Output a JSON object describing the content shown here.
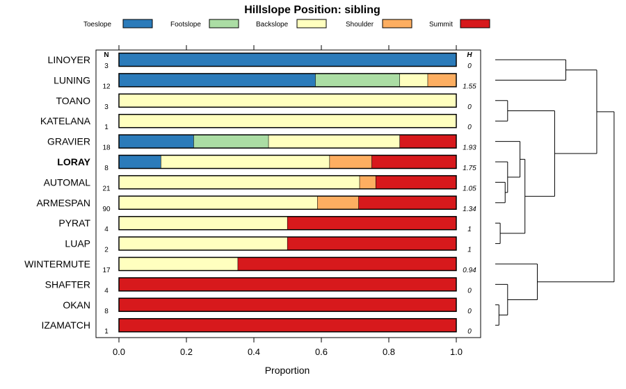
{
  "chart_data": {
    "type": "stacked-bar-horizontal",
    "title": "Hillslope Position: sibling",
    "xlabel": "Proportion",
    "xlim": [
      0,
      1
    ],
    "xticks": [
      "0.0",
      "0.2",
      "0.4",
      "0.6",
      "0.8",
      "1.0"
    ],
    "n_header": "N",
    "h_header": "H",
    "legend": [
      {
        "name": "Toeslope",
        "color": "#2b7bba"
      },
      {
        "name": "Footslope",
        "color": "#abdda4"
      },
      {
        "name": "Backslope",
        "color": "#ffffbf"
      },
      {
        "name": "Shoulder",
        "color": "#fdae61"
      },
      {
        "name": "Summit",
        "color": "#d7191c"
      }
    ],
    "rows": [
      {
        "label": "LINOYER",
        "bold": false,
        "n": "3",
        "h": "0",
        "values": [
          1.0,
          0,
          0,
          0,
          0
        ]
      },
      {
        "label": "LUNING",
        "bold": false,
        "n": "12",
        "h": "1.55",
        "values": [
          0.583,
          0.25,
          0.083,
          0.084,
          0
        ]
      },
      {
        "label": "TOANO",
        "bold": false,
        "n": "3",
        "h": "0",
        "values": [
          0,
          0,
          1.0,
          0,
          0
        ]
      },
      {
        "label": "KATELANA",
        "bold": false,
        "n": "1",
        "h": "0",
        "values": [
          0,
          0,
          1.0,
          0,
          0
        ]
      },
      {
        "label": "GRAVIER",
        "bold": false,
        "n": "18",
        "h": "1.93",
        "values": [
          0.222,
          0.222,
          0.389,
          0,
          0.167
        ]
      },
      {
        "label": "LORAY",
        "bold": true,
        "n": "8",
        "h": "1.75",
        "values": [
          0.125,
          0,
          0.5,
          0.125,
          0.25
        ]
      },
      {
        "label": "AUTOMAL",
        "bold": false,
        "n": "21",
        "h": "1.05",
        "values": [
          0,
          0,
          0.714,
          0.048,
          0.238
        ]
      },
      {
        "label": "ARMESPAN",
        "bold": false,
        "n": "90",
        "h": "1.34",
        "values": [
          0,
          0,
          0.589,
          0.122,
          0.289
        ]
      },
      {
        "label": "PYRAT",
        "bold": false,
        "n": "4",
        "h": "1",
        "values": [
          0,
          0,
          0.5,
          0,
          0.5
        ]
      },
      {
        "label": "LUAP",
        "bold": false,
        "n": "2",
        "h": "1",
        "values": [
          0,
          0,
          0.5,
          0,
          0.5
        ]
      },
      {
        "label": "WINTERMUTE",
        "bold": false,
        "n": "17",
        "h": "0.94",
        "values": [
          0,
          0,
          0.353,
          0,
          0.647
        ]
      },
      {
        "label": "SHAFTER",
        "bold": false,
        "n": "4",
        "h": "0",
        "values": [
          0,
          0,
          0,
          0,
          1.0
        ]
      },
      {
        "label": "OKAN",
        "bold": false,
        "n": "8",
        "h": "0",
        "values": [
          0,
          0,
          0,
          0,
          1.0
        ]
      },
      {
        "label": "IZAMATCH",
        "bold": false,
        "n": "1",
        "h": "0",
        "values": [
          0,
          0,
          0,
          0,
          1.0
        ]
      }
    ],
    "dendrogram": {
      "merges": [
        [
          -1,
          -2,
          0.57
        ],
        [
          -3,
          -4,
          0.1
        ],
        [
          -13,
          -14,
          0.03
        ],
        [
          -9,
          -10,
          0.04
        ],
        [
          -7,
          -8,
          0.08
        ],
        [
          -6,
          5,
          0.1
        ],
        [
          -12,
          3,
          0.1
        ],
        [
          -5,
          6,
          0.2
        ],
        [
          8,
          4,
          0.24
        ],
        [
          2,
          9,
          0.48
        ],
        [
          -11,
          7,
          0.34
        ],
        [
          1,
          10,
          0.82
        ],
        [
          12,
          11,
          0.96
        ]
      ]
    }
  }
}
